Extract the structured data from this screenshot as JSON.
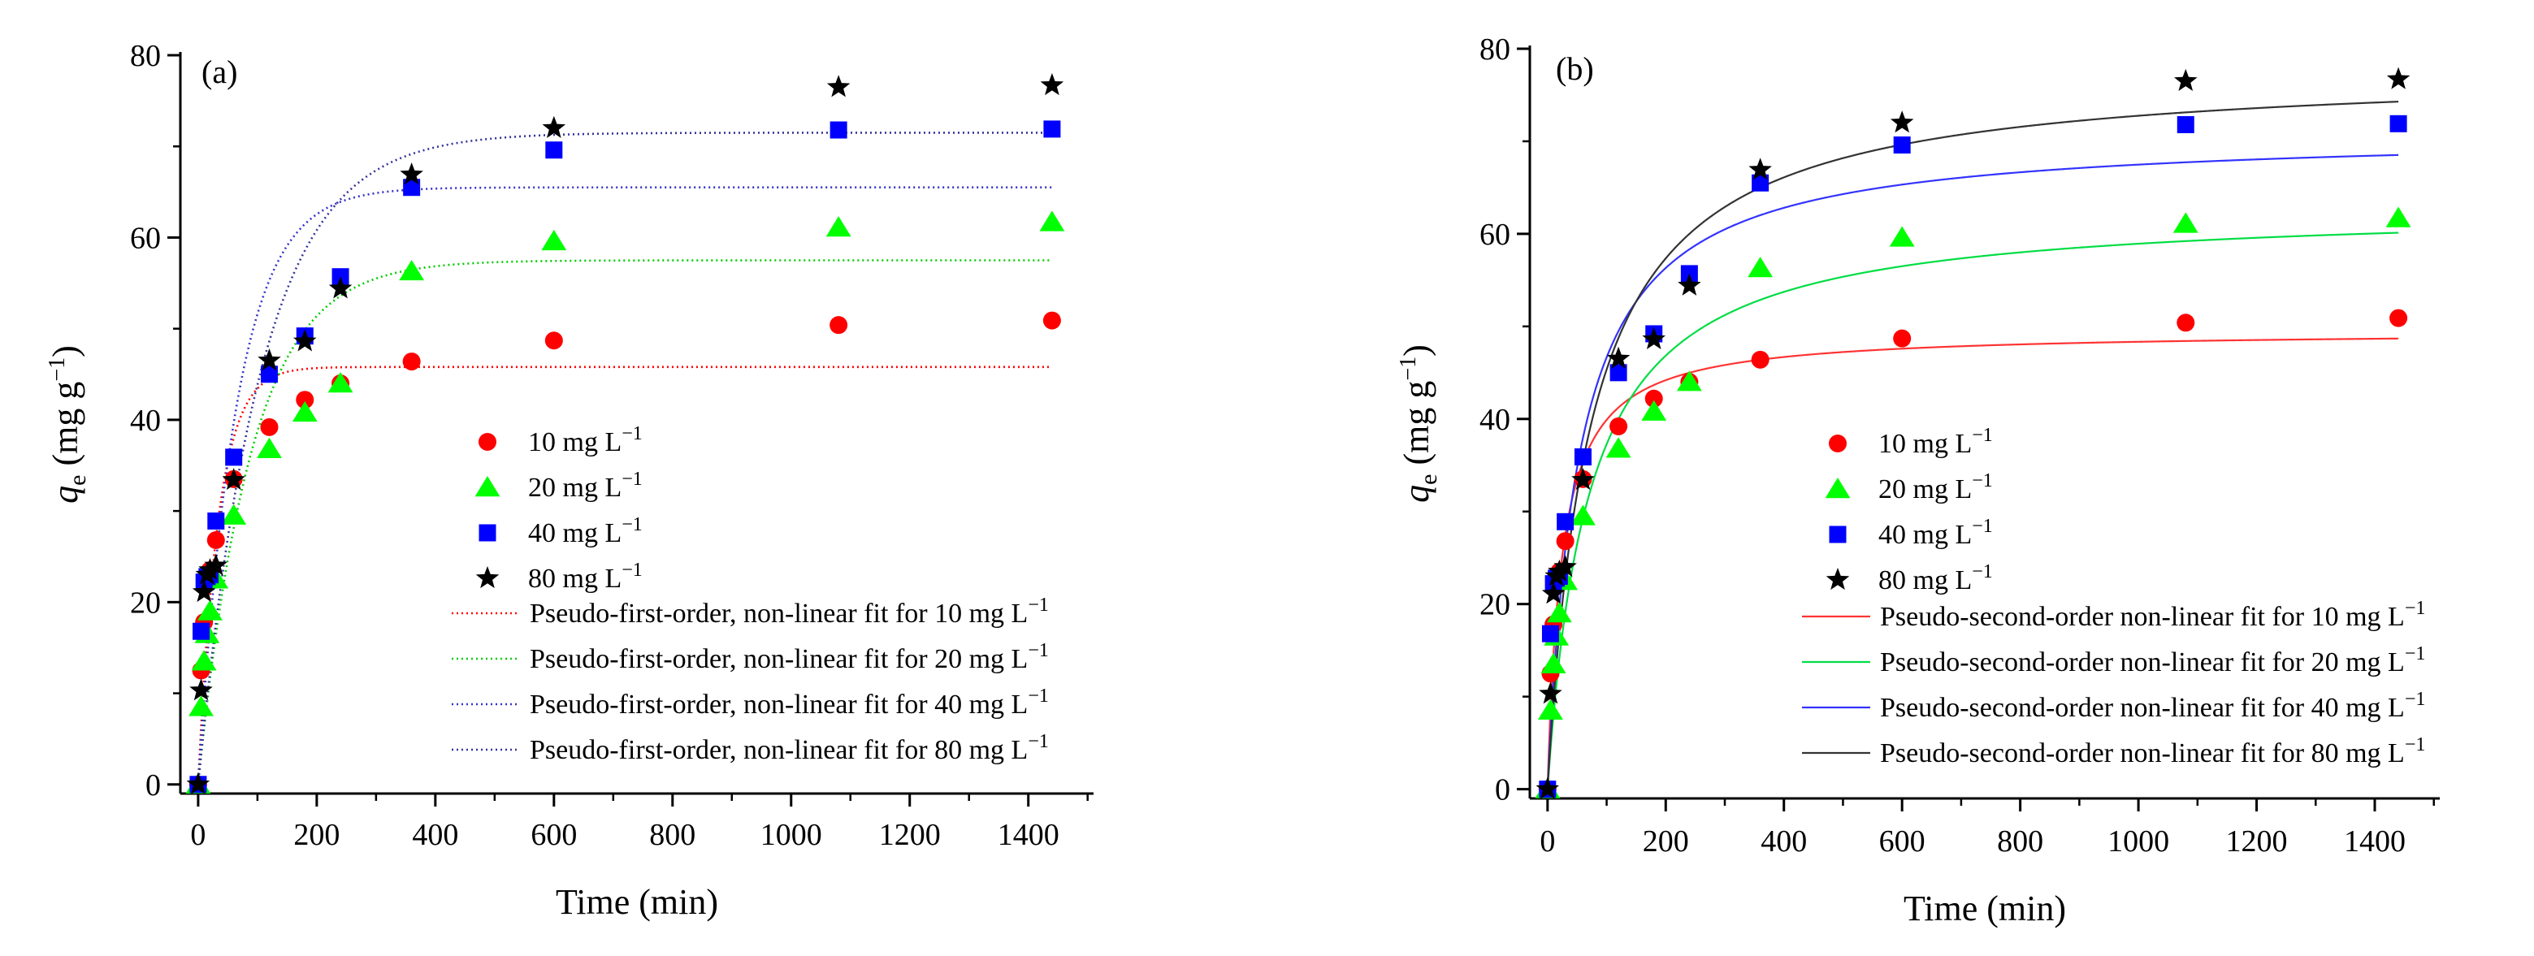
{
  "chart_data": [
    {
      "type": "scatter",
      "panel_label": "(a)",
      "xlabel": "Time (min)",
      "ylabel": {
        "q": "q",
        "sub": "e",
        "units_open": " (mg g",
        "exp": "−1",
        "units_close": ")"
      },
      "xlim": [
        -30,
        1510
      ],
      "ylim": [
        -1,
        80
      ],
      "xticks": [
        "0",
        "200",
        "400",
        "600",
        "800",
        "1000",
        "1200",
        "1400"
      ],
      "yticks": [
        "0",
        "20",
        "40",
        "60",
        "80"
      ],
      "x": [
        0,
        5,
        10,
        15,
        20,
        30,
        60,
        120,
        180,
        240,
        360,
        600,
        1080,
        1440
      ],
      "series": [
        {
          "name": "10 mg L",
          "sup": "−1",
          "marker": "circle",
          "color": "#ff0000",
          "values": [
            0,
            12.5,
            17.8,
            22.5,
            23.5,
            26.8,
            33.5,
            39.2,
            42.2,
            44,
            46.4,
            48.7,
            50.4,
            50.9
          ]
        },
        {
          "name": "20 mg L",
          "sup": "−1",
          "marker": "triangle",
          "color": "#00ff00",
          "values": [
            0,
            8.5,
            13.5,
            16.5,
            19,
            22.5,
            29.5,
            36.8,
            40.8,
            44,
            56.3,
            59.6,
            61.1,
            61.7
          ]
        },
        {
          "name": "40 mg L",
          "sup": "−1",
          "marker": "square",
          "color": "#0000ff",
          "values": [
            0,
            16.8,
            22.2,
            22.8,
            23,
            28.9,
            35.9,
            45,
            49.2,
            55.7,
            65.5,
            69.6,
            71.8,
            71.9
          ]
        },
        {
          "name": "80 mg L",
          "sup": "−1",
          "marker": "star",
          "color": "#000000",
          "values": [
            0,
            10.3,
            21.1,
            23,
            23.5,
            24,
            33.4,
            46.5,
            48.6,
            54.4,
            66.9,
            72,
            76.5,
            76.7
          ]
        }
      ],
      "fits": [
        {
          "name": "Pseudo-first-order, non-linear fit for 10 mg L",
          "sup": "−1",
          "model": "pfo",
          "qe": 45.8,
          "k": 0.0296,
          "color": "#ff0000",
          "style": "dotted"
        },
        {
          "name": "Pseudo-first-order, non-linear fit for 20 mg L",
          "sup": "−1",
          "model": "pfo",
          "qe": 57.5,
          "k": 0.0112,
          "color": "#00cc00",
          "style": "dotted"
        },
        {
          "name": "Pseudo-first-order, non-linear fit for 40 mg L",
          "sup": "−1",
          "model": "pfo",
          "qe": 65.5,
          "k": 0.0155,
          "color": "#3333cc",
          "style": "dotted"
        },
        {
          "name": "Pseudo-first-order, non-linear fit for 80 mg L",
          "sup": "−1",
          "model": "pfo",
          "qe": 71.5,
          "k": 0.0095,
          "color": "#333399",
          "style": "dotted"
        }
      ],
      "legend_position": "lower-right"
    },
    {
      "type": "scatter",
      "panel_label": "(b)",
      "xlabel": "Time (min)",
      "ylabel": {
        "q": "q",
        "sub": "e",
        "units_open": " (mg g",
        "exp": "−1",
        "units_close": ")"
      },
      "xlim": [
        -30,
        1510
      ],
      "ylim": [
        -1,
        80
      ],
      "xticks": [
        "0",
        "200",
        "400",
        "600",
        "800",
        "1000",
        "1200",
        "1400"
      ],
      "yticks": [
        "0",
        "20",
        "40",
        "60",
        "80"
      ],
      "x": [
        0,
        5,
        10,
        15,
        20,
        30,
        60,
        120,
        180,
        240,
        360,
        600,
        1080,
        1440
      ],
      "series": [
        {
          "name": "10 mg L",
          "sup": "−1",
          "marker": "circle",
          "color": "#ff0000",
          "values": [
            0,
            12.5,
            17.8,
            22.5,
            23.5,
            26.8,
            33.5,
            39.2,
            42.2,
            44,
            46.4,
            48.7,
            50.4,
            50.9
          ]
        },
        {
          "name": "20 mg L",
          "sup": "−1",
          "marker": "triangle",
          "color": "#00ff00",
          "values": [
            0,
            8.5,
            13.5,
            16.5,
            19,
            22.5,
            29.5,
            36.8,
            40.8,
            44,
            56.3,
            59.6,
            61.1,
            61.7
          ]
        },
        {
          "name": "40 mg L",
          "sup": "−1",
          "marker": "square",
          "color": "#0000ff",
          "values": [
            0,
            16.8,
            22.2,
            22.8,
            23,
            28.9,
            35.9,
            45,
            49.2,
            55.7,
            65.5,
            69.6,
            71.8,
            71.9
          ]
        },
        {
          "name": "80 mg L",
          "sup": "−1",
          "marker": "star",
          "color": "#000000",
          "values": [
            0,
            10.3,
            21.1,
            23,
            23.5,
            24,
            33.4,
            46.5,
            48.6,
            54.4,
            66.9,
            72,
            76.5,
            76.7
          ]
        }
      ],
      "fits": [
        {
          "name": "Pseudo-second-order non-linear fit for 10 mg L",
          "sup": "−1",
          "model": "pso",
          "qe": 49.5,
          "k": 0.00084,
          "color": "#ff3333",
          "style": "solid"
        },
        {
          "name": "Pseudo-second-order non-linear fit for 20 mg L",
          "sup": "−1",
          "model": "pso",
          "qe": 63.0,
          "k": 0.00023,
          "color": "#00dd44",
          "style": "solid"
        },
        {
          "name": "Pseudo-second-order non-linear fit for 40 mg L",
          "sup": "−1",
          "model": "pso",
          "qe": 71.0,
          "k": 0.00027,
          "color": "#3333ff",
          "style": "solid"
        },
        {
          "name": "Pseudo-second-order non-linear fit for 80 mg L",
          "sup": "−1",
          "model": "pso",
          "qe": 78.0,
          "k": 0.000178,
          "color": "#333333",
          "style": "solid"
        }
      ],
      "legend_position": "lower-right"
    }
  ]
}
